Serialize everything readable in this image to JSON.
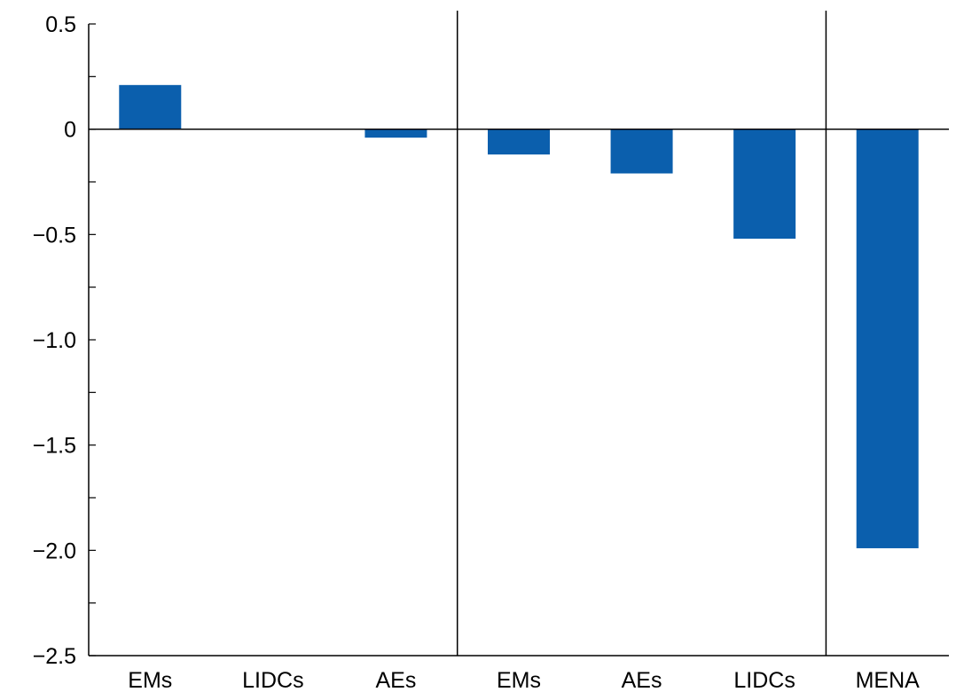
{
  "chart_data": {
    "type": "bar",
    "title": "",
    "xlabel": "",
    "ylabel": "",
    "categories": [
      "EMs",
      "LIDCs",
      "AEs",
      "EMs",
      "AEs",
      "LIDCs",
      "MENA"
    ],
    "values": [
      0.21,
      0.0,
      -0.04,
      -0.12,
      -0.21,
      -0.52,
      -1.99
    ],
    "ylim": [
      -2.5,
      0.5
    ],
    "y_ticks": [
      0.5,
      0,
      -0.5,
      -1.0,
      -1.5,
      -2.0,
      -2.5
    ],
    "y_tick_labels": [
      "0.5",
      "0",
      "−0.5",
      "−1.0",
      "−1.5",
      "−2.0",
      "−2.5"
    ],
    "group_separators_after_index": [
      2,
      5
    ],
    "grid": false,
    "legend": "none",
    "bar_color": "#0b5fad",
    "axis_color": "#000000"
  }
}
